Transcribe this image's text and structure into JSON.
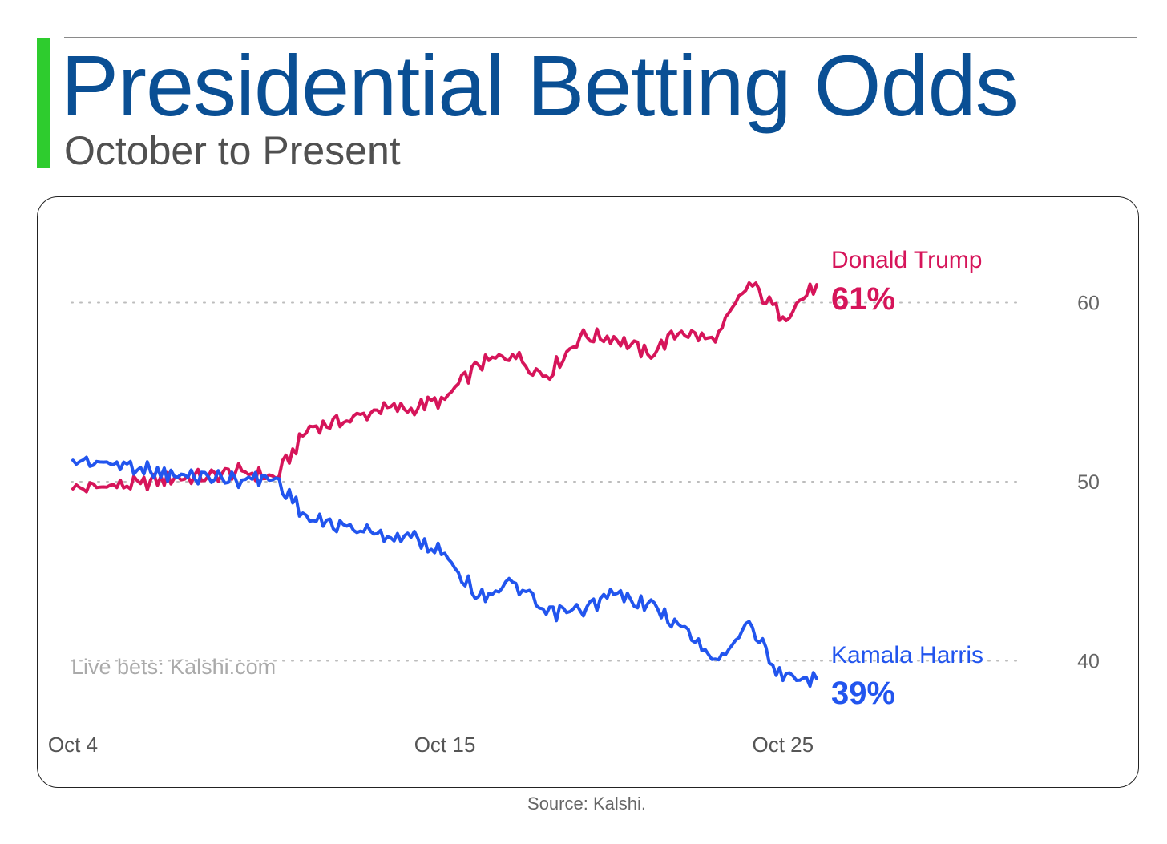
{
  "header": {
    "title": "Presidential Betting Odds",
    "subtitle": "October to Present",
    "accent_color": "#2ecc2e",
    "title_color": "#0a4f94"
  },
  "footer": {
    "source": "Source: Kalshi."
  },
  "chart_data": {
    "type": "line",
    "watermark": "Live bets: Kalshi.com",
    "x_ticks": [
      "Oct 4",
      "Oct 15",
      "Oct 25"
    ],
    "y_ticks": [
      40,
      50,
      60
    ],
    "ylim": [
      36,
      64
    ],
    "grid": "dotted horizontal at 40, 50, 60",
    "y_axis_side": "right",
    "series": [
      {
        "name": "Donald Trump",
        "end_label": "61%",
        "color": "#d6155a",
        "x": [
          "Oct 4",
          "Oct 5",
          "Oct 6",
          "Oct 7",
          "Oct 8",
          "Oct 9",
          "Oct 10",
          "Oct 11",
          "Oct 12",
          "Oct 13",
          "Oct 14",
          "Oct 15",
          "Oct 16",
          "Oct 17",
          "Oct 18",
          "Oct 19",
          "Oct 20",
          "Oct 21",
          "Oct 22",
          "Oct 23",
          "Oct 24",
          "Oct 25",
          "Oct 26"
        ],
        "values": [
          49.6,
          49.7,
          49.9,
          50.2,
          50.3,
          50.6,
          50.2,
          53.1,
          53.3,
          54.0,
          54.1,
          54.6,
          56.5,
          57.1,
          55.9,
          58.1,
          58.1,
          57.1,
          58.4,
          57.8,
          61.1,
          59.2,
          61.0
        ]
      },
      {
        "name": "Kamala Harris",
        "end_label": "39%",
        "color": "#2255ee",
        "x": [
          "Oct 4",
          "Oct 5",
          "Oct 6",
          "Oct 7",
          "Oct 8",
          "Oct 9",
          "Oct 10",
          "Oct 11",
          "Oct 12",
          "Oct 13",
          "Oct 14",
          "Oct 15",
          "Oct 16",
          "Oct 17",
          "Oct 18",
          "Oct 19",
          "Oct 20",
          "Oct 21",
          "Oct 22",
          "Oct 23",
          "Oct 24",
          "Oct 25",
          "Oct 26"
        ],
        "values": [
          51.2,
          51.1,
          50.8,
          50.3,
          50.3,
          50.1,
          50.2,
          47.8,
          47.6,
          47.1,
          46.9,
          46.0,
          43.6,
          44.4,
          42.6,
          42.8,
          43.7,
          43.2,
          41.9,
          40.1,
          42.2,
          38.9,
          39.0
        ]
      }
    ]
  }
}
